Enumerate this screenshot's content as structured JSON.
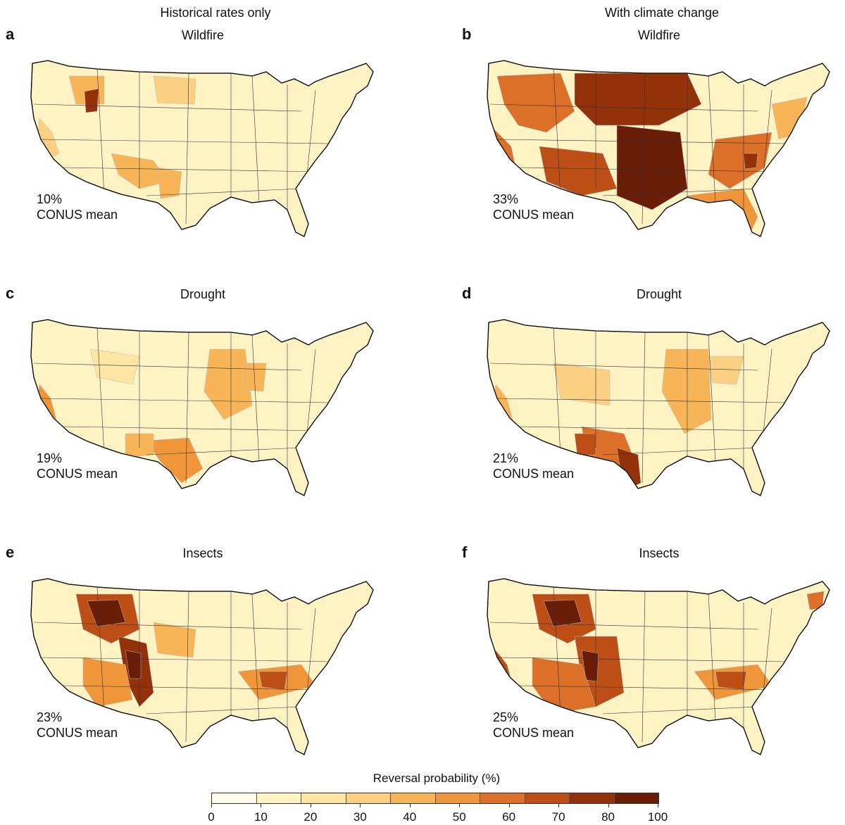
{
  "columns": {
    "left": "Historical rates only",
    "right": "With climate change"
  },
  "panels": [
    {
      "letter": "a",
      "title": "Wildfire",
      "mean_value": "10%",
      "mean_label": "CONUS mean"
    },
    {
      "letter": "b",
      "title": "Wildfire",
      "mean_value": "33%",
      "mean_label": "CONUS mean"
    },
    {
      "letter": "c",
      "title": "Drought",
      "mean_value": "19%",
      "mean_label": "CONUS mean"
    },
    {
      "letter": "d",
      "title": "Drought",
      "mean_value": "21%",
      "mean_label": "CONUS mean"
    },
    {
      "letter": "e",
      "title": "Insects",
      "mean_value": "23%",
      "mean_label": "CONUS mean"
    },
    {
      "letter": "f",
      "title": "Insects",
      "mean_value": "25%",
      "mean_label": "CONUS mean"
    }
  ],
  "legend": {
    "title": "Reversal probability (%)",
    "ticks": [
      "0",
      "10",
      "20",
      "30",
      "40",
      "50",
      "60",
      "70",
      "80",
      "100"
    ],
    "colors": [
      "#fffbe8",
      "#fff3c4",
      "#fde6a3",
      "#fcd083",
      "#f8b557",
      "#f0963a",
      "#dc7028",
      "#bd4f16",
      "#93310b",
      "#6b1e07"
    ]
  }
}
